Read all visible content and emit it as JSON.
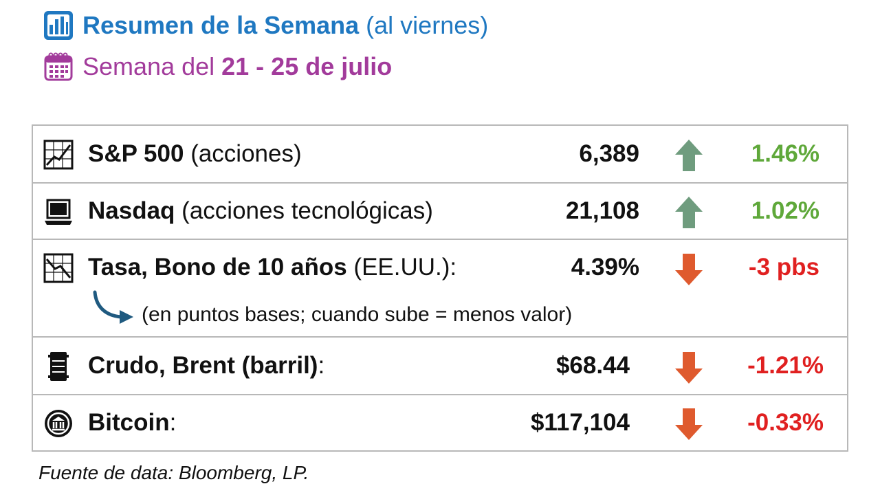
{
  "header": {
    "title_bold": "Resumen de la Semana",
    "title_note": "(al viernes)",
    "week_prefix": "Semana del",
    "week_range": "21 - 25 de julio",
    "title_icon": "bar-chart-icon",
    "week_icon": "calendar-icon",
    "title_color": "#1f78c1",
    "week_color": "#a23b9b"
  },
  "rows": [
    {
      "name": "S&P 500",
      "desc": "(acciones)",
      "value": "6,389",
      "change": "1.46%",
      "direction": "up",
      "icon": "line-chart-icon"
    },
    {
      "name": "Nasdaq",
      "desc": "(acciones tecnológicas)",
      "value": "21,108",
      "change": "1.02%",
      "direction": "up",
      "icon": "laptop-icon"
    },
    {
      "name": "Tasa, Bono de 10 años",
      "desc": "(EE.UU.):",
      "value": "4.39%",
      "change": "-3 pbs",
      "direction": "down",
      "icon": "declining-chart-icon",
      "note": "(en puntos bases; cuando sube = menos valor)"
    },
    {
      "name": "Crudo, Brent (barril)",
      "desc": ":",
      "value": "$68.44",
      "change": "-1.21%",
      "direction": "down",
      "icon": "oil-barrel-icon"
    },
    {
      "name": "Bitcoin",
      "desc": ":",
      "value": "$117,104",
      "change": "-0.33%",
      "direction": "down",
      "icon": "coin-icon"
    }
  ],
  "colors": {
    "up_arrow": "#6f9c7e",
    "down_arrow": "#df5a2e",
    "up_text": "#5fa83a",
    "down_text": "#e02020",
    "border": "#b8b8b8"
  },
  "footer": {
    "source": "Fuente de data: Bloomberg, LP."
  }
}
